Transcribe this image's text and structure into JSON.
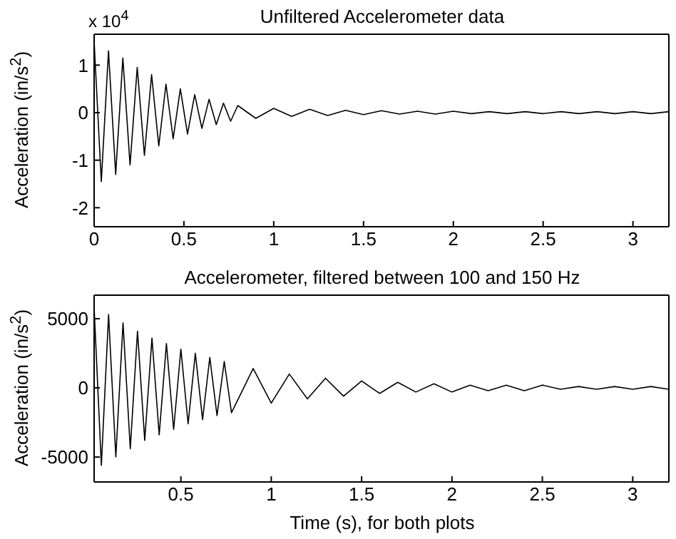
{
  "chart_data": [
    {
      "type": "line",
      "title": "Unfiltered Accelerometer data",
      "ylabel": "Acceleration (in/s$^{2}$)",
      "annotations": [
        "x 10$^{4}$"
      ],
      "x": [
        0,
        0.04,
        0.08,
        0.12,
        0.16,
        0.2,
        0.24,
        0.28,
        0.32,
        0.36,
        0.4,
        0.44,
        0.48,
        0.52,
        0.56,
        0.6,
        0.64,
        0.68,
        0.72,
        0.76,
        0.8,
        0.9,
        1.0,
        1.1,
        1.2,
        1.3,
        1.4,
        1.5,
        1.6,
        1.7,
        1.8,
        1.9,
        2.0,
        2.1,
        2.2,
        2.3,
        2.4,
        2.5,
        2.6,
        2.7,
        2.8,
        2.9,
        3.0,
        3.1,
        3.2
      ],
      "series": [
        {
          "color": "#000000",
          "values": [
            1.5,
            -1.45,
            1.3,
            -1.3,
            1.15,
            -1.1,
            0.95,
            -0.9,
            0.8,
            -0.7,
            0.6,
            -0.55,
            0.5,
            -0.45,
            0.38,
            -0.33,
            0.28,
            -0.25,
            0.2,
            -0.18,
            0.15,
            -0.12,
            0.09,
            -0.08,
            0.07,
            -0.06,
            0.05,
            -0.04,
            0.04,
            -0.03,
            0.03,
            -0.03,
            0.03,
            -0.02,
            0.02,
            -0.02,
            0.02,
            -0.02,
            0.02,
            -0.02,
            0.02,
            -0.02,
            0.02,
            -0.02,
            0.02
          ]
        }
      ],
      "xlim": [
        0,
        3.2
      ],
      "xticks": [
        0,
        0.5,
        1,
        1.5,
        2,
        2.5,
        3
      ],
      "ylim": [
        -2.4,
        1.65
      ],
      "yticks": [
        -2,
        -1,
        0,
        1
      ],
      "grid": false,
      "legend": false
    },
    {
      "type": "line",
      "title": "Accelerometer, filtered between 100 and 150 Hz",
      "xlabel": "Time (s), for both plots",
      "ylabel": "Acceleration (in/s$^{2}$)",
      "x": [
        0.02,
        0.06,
        0.1,
        0.14,
        0.18,
        0.22,
        0.26,
        0.3,
        0.34,
        0.38,
        0.42,
        0.46,
        0.5,
        0.54,
        0.58,
        0.62,
        0.66,
        0.7,
        0.74,
        0.78,
        0.9,
        1.0,
        1.1,
        1.2,
        1.3,
        1.4,
        1.5,
        1.6,
        1.7,
        1.8,
        1.9,
        2.0,
        2.1,
        2.2,
        2.3,
        2.4,
        2.5,
        2.6,
        2.7,
        2.8,
        2.9,
        3.0,
        3.1,
        3.2
      ],
      "series": [
        {
          "color": "#000000",
          "values": [
            5800,
            -5600,
            5300,
            -5000,
            4700,
            -4400,
            4100,
            -3800,
            3600,
            -3400,
            3200,
            -3000,
            2800,
            -2600,
            2500,
            -2300,
            2200,
            -2000,
            1900,
            -1800,
            1400,
            -1100,
            1000,
            -800,
            700,
            -600,
            500,
            -400,
            400,
            -300,
            300,
            -300,
            200,
            -200,
            200,
            -200,
            200,
            -100,
            100,
            -100,
            100,
            -100,
            100,
            -100
          ]
        }
      ],
      "xlim": [
        0.02,
        3.2
      ],
      "xticks": [
        0.5,
        1,
        1.5,
        2,
        2.5,
        3
      ],
      "ylim": [
        -6800,
        6700
      ],
      "yticks": [
        -5000,
        0,
        5000
      ],
      "grid": false,
      "legend": false
    }
  ]
}
